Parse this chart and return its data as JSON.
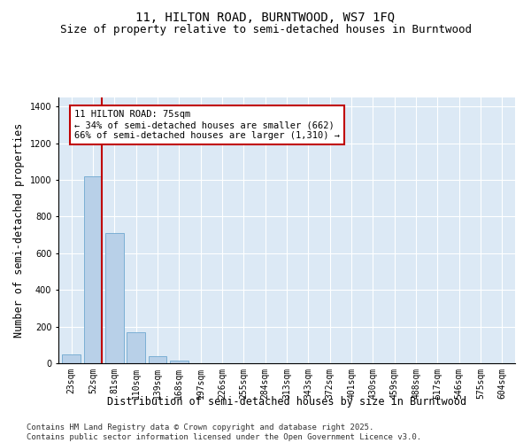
{
  "title_line1": "11, HILTON ROAD, BURNTWOOD, WS7 1FQ",
  "title_line2": "Size of property relative to semi-detached houses in Burntwood",
  "xlabel": "Distribution of semi-detached houses by size in Burntwood",
  "ylabel": "Number of semi-detached properties",
  "categories": [
    "23sqm",
    "52sqm",
    "81sqm",
    "110sqm",
    "139sqm",
    "168sqm",
    "197sqm",
    "226sqm",
    "255sqm",
    "284sqm",
    "313sqm",
    "343sqm",
    "372sqm",
    "401sqm",
    "430sqm",
    "459sqm",
    "488sqm",
    "517sqm",
    "546sqm",
    "575sqm",
    "604sqm"
  ],
  "values": [
    48,
    1020,
    710,
    170,
    40,
    15,
    0,
    0,
    0,
    0,
    0,
    0,
    0,
    0,
    0,
    0,
    0,
    0,
    0,
    0,
    0
  ],
  "bar_color": "#b8d0e8",
  "bar_edge_color": "#6fa8d0",
  "vline_x_bar_index": 1.42,
  "vline_color": "#c00000",
  "annotation_text": "11 HILTON ROAD: 75sqm\n← 34% of semi-detached houses are smaller (662)\n66% of semi-detached houses are larger (1,310) →",
  "annotation_box_color": "#c00000",
  "ylim": [
    0,
    1450
  ],
  "yticks": [
    0,
    200,
    400,
    600,
    800,
    1000,
    1200,
    1400
  ],
  "plot_bg_color": "#dce9f5",
  "footer_line1": "Contains HM Land Registry data © Crown copyright and database right 2025.",
  "footer_line2": "Contains public sector information licensed under the Open Government Licence v3.0.",
  "title_fontsize": 10,
  "subtitle_fontsize": 9,
  "axis_label_fontsize": 8.5,
  "tick_fontsize": 7,
  "annotation_fontsize": 7.5,
  "footer_fontsize": 6.5
}
